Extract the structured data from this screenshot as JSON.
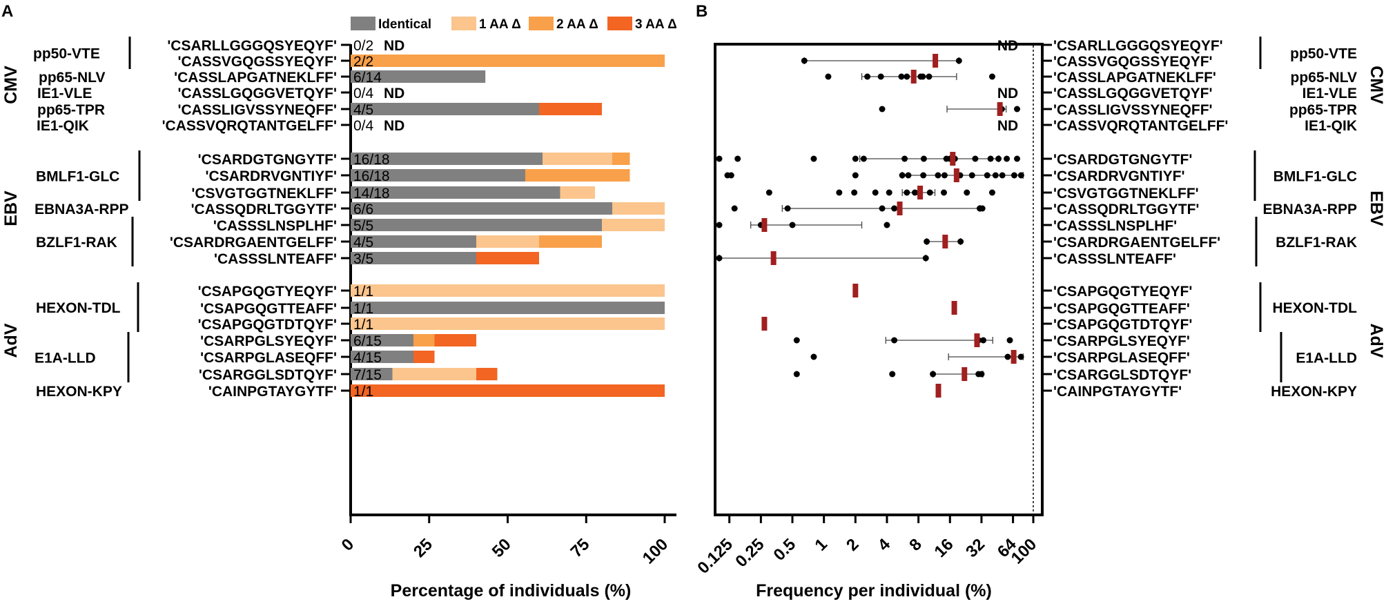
{
  "panelA": {
    "letter": "A",
    "legend": [
      {
        "label": "Identical",
        "color": "#808080"
      },
      {
        "label": "1 AA Δ",
        "color": "#fbc58d"
      },
      {
        "label": "2 AA Δ",
        "color": "#f9a04a"
      },
      {
        "label": "3 AA Δ",
        "color": "#f26522"
      }
    ],
    "xlabel": "Percentage of individuals (%)",
    "ticks": [
      "0",
      "25",
      "50",
      "75",
      "100"
    ]
  },
  "panelB": {
    "letter": "B",
    "xlabel": "Frequency per individual (%)",
    "ticks": [
      "0.125",
      "0.25",
      "0.5",
      "1",
      "2",
      "4",
      "8",
      "16",
      "32",
      "64",
      "100"
    ],
    "nd_label": "ND"
  },
  "groups": [
    {
      "name": "CMV",
      "first": 0,
      "last": 5
    },
    {
      "name": "EBV",
      "first": 6,
      "last": 12
    },
    {
      "name": "AdV",
      "first": 13,
      "last": 19
    }
  ],
  "epitopes": [
    {
      "name": "pp50-VTE",
      "first": 0,
      "last": 1
    },
    {
      "name": "pp65-NLV",
      "first": 2,
      "last": 2
    },
    {
      "name": "IE1-VLE",
      "first": 3,
      "last": 3
    },
    {
      "name": "pp65-TPR",
      "first": 4,
      "last": 4
    },
    {
      "name": "IE1-QIK",
      "first": 5,
      "last": 5
    },
    {
      "name": "BMLF1-GLC",
      "first": 6,
      "last": 8
    },
    {
      "name": "EBNA3A-RPP",
      "first": 9,
      "last": 9
    },
    {
      "name": "BZLF1-RAK",
      "first": 10,
      "last": 12
    },
    {
      "name": "HEXON-TDL",
      "first": 13,
      "last": 15
    },
    {
      "name": "E1A-LLD",
      "first": 16,
      "last": 18
    },
    {
      "name": "HEXON-KPY",
      "first": 19,
      "last": 19
    }
  ],
  "rows": [
    {
      "seq": "'CSARLLGGGQSYEQYF'",
      "count": "0/2",
      "nd": "ND"
    },
    {
      "seq": "'CASSVGQGSSYEQYF'",
      "count": "2/2",
      "nd": ""
    },
    {
      "seq": "'CASSLAPGATNEKLFF'",
      "count": "6/14",
      "nd": ""
    },
    {
      "seq": "'CASSLGQGGVETQYF'",
      "count": "0/4",
      "nd": "ND"
    },
    {
      "seq": "'CASSLIGVSSYNEQFF'",
      "count": "4/5",
      "nd": ""
    },
    {
      "seq": "'CASSVQRQTANTGELFF'",
      "count": "0/4",
      "nd": "ND"
    },
    {
      "seq": "'CSARDGTGNGYTF'",
      "count": "16/18",
      "nd": ""
    },
    {
      "seq": "'CSARDRVGNTIYF'",
      "count": "16/18",
      "nd": ""
    },
    {
      "seq": "'CSVGTGGTNEKLFF'",
      "count": "14/18",
      "nd": ""
    },
    {
      "seq": "'CASSQDRLTGGYTF'",
      "count": "6/6",
      "nd": ""
    },
    {
      "seq": "'CASSSLNSPLHF'",
      "count": "5/5",
      "nd": ""
    },
    {
      "seq": "'CSARDRGAENTGELFF'",
      "count": "4/5",
      "nd": ""
    },
    {
      "seq": "'CASSSLNTEAFF'",
      "count": "3/5",
      "nd": ""
    },
    {
      "seq": "'CSAPGQGTYEQYF'",
      "count": "1/1",
      "nd": ""
    },
    {
      "seq": "'CSAPGQGTTEAFF'",
      "count": "1/1",
      "nd": ""
    },
    {
      "seq": "'CSAPGQGTDTQYF'",
      "count": "1/1",
      "nd": ""
    },
    {
      "seq": "'CSARPGLSYEQYF'",
      "count": "6/15",
      "nd": ""
    },
    {
      "seq": "'CSARPGLASEQFF'",
      "count": "4/15",
      "nd": ""
    },
    {
      "seq": "'CSARGGLSDTQYF'",
      "count": "7/15",
      "nd": ""
    },
    {
      "seq": "'CAINPGTAYGYTF'",
      "count": "1/1",
      "nd": ""
    }
  ],
  "chart_data": [
    {
      "type": "bar",
      "orientation": "horizontal",
      "stacked": true,
      "title": "A",
      "xlabel": "Percentage of individuals (%)",
      "xlim": [
        0,
        100
      ],
      "categories": [
        "'CSARLLGGGQSYEQYF'",
        "'CASSVGQGSSYEQYF'",
        "'CASSLAPGATNEKLFF'",
        "'CASSLGQGGVETQYF'",
        "'CASSLIGVSSYNEQFF'",
        "'CASSVQRQTANTGELFF'",
        "'CSARDGTGNGYTF'",
        "'CSARDRVGNTIYF'",
        "'CSVGTGGTNEKLFF'",
        "'CASSQDRLTGGYTF'",
        "'CASSSLNSPLHF'",
        "'CSARDRGAENTGELFF'",
        "'CASSSLNTEAFF'",
        "'CSAPGQGTYEQYF'",
        "'CSAPGQGTTEAFF'",
        "'CSAPGQGTDTQYF'",
        "'CSARPGLSYEQYF'",
        "'CSARPGLASEQFF'",
        "'CSARGGLSDTQYF'",
        "'CAINPGTAYGYTF'"
      ],
      "series": [
        {
          "name": "Identical",
          "color": "#808080",
          "values": [
            0,
            0,
            42.9,
            0,
            60,
            0,
            61.1,
            55.6,
            66.7,
            83.3,
            80,
            40,
            40,
            0,
            100,
            0,
            20,
            20,
            13.3,
            0
          ]
        },
        {
          "name": "1 AA Δ",
          "color": "#fbc58d",
          "values": [
            0,
            0,
            0,
            0,
            0,
            0,
            22.2,
            0,
            11.1,
            16.7,
            20,
            20,
            0,
            100,
            0,
            100,
            0,
            0,
            26.7,
            0
          ]
        },
        {
          "name": "2 AA Δ",
          "color": "#f9a04a",
          "values": [
            0,
            100,
            0,
            0,
            0,
            0,
            5.6,
            33.3,
            0,
            0,
            0,
            20,
            0,
            0,
            0,
            0,
            6.7,
            0,
            0,
            0
          ]
        },
        {
          "name": "3 AA Δ",
          "color": "#f26522",
          "values": [
            0,
            0,
            0,
            0,
            20,
            0,
            0,
            0,
            0,
            0,
            0,
            0,
            20,
            0,
            0,
            0,
            13.3,
            6.7,
            6.7,
            100
          ]
        }
      ]
    },
    {
      "type": "scatter",
      "title": "B",
      "xlabel": "Frequency per individual (%)",
      "xscale": "log2",
      "xlim": [
        0.1,
        100
      ],
      "x_reference_line": 100,
      "categories": [
        "'CSARLLGGGQSYEQYF'",
        "'CASSVGQGSSYEQYF'",
        "'CASSLAPGATNEKLFF'",
        "'CASSLGQGGVETQYF'",
        "'CASSLIGVSSYNEQFF'",
        "'CASSVQRQTANTGELFF'",
        "'CSARDGTGNGYTF'",
        "'CSARDRVGNTIYF'",
        "'CSVGTGGTNEKLFF'",
        "'CASSQDRLTGGYTF'",
        "'CASSSLNSPLHF'",
        "'CSARDRGAENTGELFF'",
        "'CASSSLNTEAFF'",
        "'CSAPGQGTYEQYF'",
        "'CSAPGQGTTEAFF'",
        "'CSAPGQGTDTQYF'",
        "'CSARPGLSYEQYF'",
        "'CSARPGLASEQFF'",
        "'CSARGGLSDTQYF'",
        "'CAINPGTAYGYTF'"
      ],
      "median_color": "#a01f1f",
      "rows": [
        {
          "nd": true,
          "points": [],
          "median": null,
          "range": null
        },
        {
          "nd": false,
          "points": [
            0.65,
            19.5
          ],
          "median": 11.6,
          "range": [
            0.65,
            19.5
          ]
        },
        {
          "nd": false,
          "points": [
            1.1,
            2.6,
            3.5,
            5.5,
            6.2,
            8.4,
            8.8,
            10.1,
            40.5
          ],
          "median": 7.2,
          "range": [
            2.3,
            18.5
          ]
        },
        {
          "nd": true,
          "points": [],
          "median": null,
          "range": null
        },
        {
          "nd": false,
          "points": [
            3.6,
            50,
            70
          ],
          "median": 48,
          "range": [
            15,
            55
          ]
        },
        {
          "nd": true,
          "points": [],
          "median": null,
          "range": null
        },
        {
          "nd": false,
          "points": [
            0.1,
            0.15,
            0.8,
            2.0,
            2.4,
            5.9,
            9.0,
            14.8,
            16.0,
            17.8,
            27.9,
            39.1,
            46.5,
            55.8,
            70
          ],
          "median": 17.0,
          "range": [
            2.2,
            47
          ]
        },
        {
          "nd": false,
          "points": [
            0.12,
            0.13,
            2.0,
            5.6,
            6.4,
            8.9,
            12.3,
            14.2,
            20.0,
            26.0,
            36.3,
            43.6,
            50.6,
            65.8,
            76.5
          ],
          "median": 18.5,
          "range": [
            5.6,
            80
          ]
        },
        {
          "nd": false,
          "points": [
            0.3,
            1.4,
            1.95,
            3.1,
            4.2,
            6.2,
            7.4,
            8.1,
            10.3,
            14.0,
            23.2,
            40.5
          ],
          "median": 8.3,
          "range": [
            5.6,
            11.5
          ]
        },
        {
          "nd": false,
          "points": [
            0.14,
            0.45,
            3.6,
            4.7,
            30.8,
            32.6
          ],
          "median": 5.3,
          "range": [
            0.4,
            31
          ]
        },
        {
          "nd": false,
          "points": [
            0.1,
            0.25,
            0.5,
            4.0
          ],
          "median": 0.27,
          "range": [
            0.2,
            2.3
          ]
        },
        {
          "nd": false,
          "points": [
            9.6,
            20.2
          ],
          "median": 14.4,
          "range": [
            9.6,
            20.2
          ]
        },
        {
          "nd": false,
          "points": [
            0.1,
            9.4
          ],
          "median": 0.33,
          "range": [
            0.1,
            9.4
          ]
        },
        {
          "nd": false,
          "points": [],
          "median": 2.0,
          "range": null
        },
        {
          "nd": false,
          "points": [],
          "median": 17.6,
          "range": null
        },
        {
          "nd": false,
          "points": [],
          "median": 0.27,
          "range": null
        },
        {
          "nd": false,
          "points": [
            0.55,
            4.7,
            30.0,
            33.3,
            59.7
          ],
          "median": 29.0,
          "range": [
            3.9,
            41
          ]
        },
        {
          "nd": false,
          "points": [
            0.8,
            57.0,
            76.2
          ],
          "median": 65.0,
          "range": [
            15.5,
            80
          ]
        },
        {
          "nd": false,
          "points": [
            0.55,
            4.5,
            11.0,
            30.0,
            32.0
          ],
          "median": 22.0,
          "range": [
            11.0,
            33
          ]
        },
        {
          "nd": false,
          "points": [],
          "median": 12.4,
          "range": null
        }
      ]
    }
  ]
}
